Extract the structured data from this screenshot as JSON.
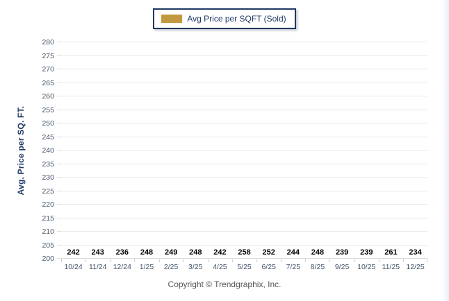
{
  "legend": {
    "label": "Avg Price per SQFT (Sold)",
    "swatch_color": "#C2993E"
  },
  "chart_data": {
    "type": "bar",
    "title": "",
    "xlabel": "",
    "ylabel": "Avg. Price per SQ. FT.",
    "categories": [
      "10/24",
      "11/24",
      "12/24",
      "1/25",
      "2/25",
      "3/25",
      "4/25",
      "5/25",
      "6/25",
      "7/25",
      "8/25",
      "9/25",
      "10/25",
      "11/25",
      "12/25"
    ],
    "series": [
      {
        "name": "Avg Price per SQFT (Sold)",
        "values": [
          242,
          243,
          236,
          248,
          249,
          248,
          242,
          258,
          252,
          244,
          248,
          239,
          239,
          261,
          234
        ]
      }
    ],
    "ylim": [
      200,
      280
    ],
    "ytick_step": 5,
    "grid": "horizontal",
    "legend_position": "top-center",
    "bar_color": "#C2993E",
    "value_labels_shown": true
  },
  "footer": {
    "copyright": "Copyright © Trendgraphix, Inc."
  },
  "colors": {
    "bar": "#C2993E",
    "legend_border": "#1F3864",
    "axis_title": "#1F3864",
    "tick_label": "#44546A",
    "value_label": "#000000",
    "gridline": "#E8E8E8",
    "copyright": "#555555"
  }
}
